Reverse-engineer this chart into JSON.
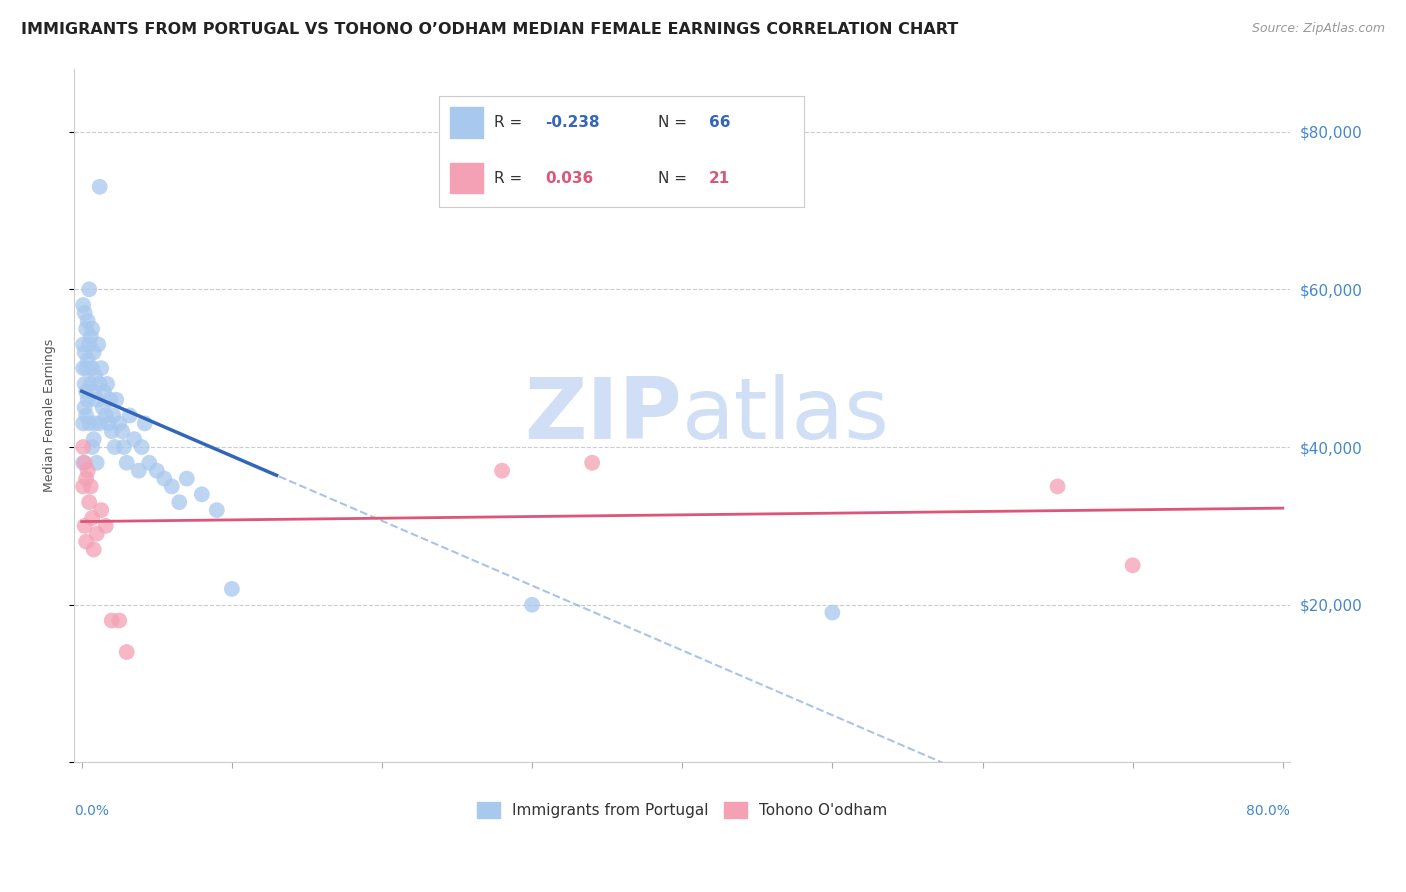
{
  "title": "IMMIGRANTS FROM PORTUGAL VS TOHONO O’ODHAM MEDIAN FEMALE EARNINGS CORRELATION CHART",
  "source": "Source: ZipAtlas.com",
  "ylabel": "Median Female Earnings",
  "y_ticks": [
    0,
    20000,
    40000,
    60000,
    80000
  ],
  "y_tick_labels": [
    "",
    "$20,000",
    "$40,000",
    "$60,000",
    "$80,000"
  ],
  "xlim": [
    -0.005,
    0.805
  ],
  "ylim": [
    0,
    88000
  ],
  "blue_R": -0.238,
  "blue_N": 66,
  "pink_R": 0.036,
  "pink_N": 21,
  "blue_color": "#A8C8EE",
  "blue_line_color": "#3366BB",
  "blue_dash_color": "#88AADA",
  "pink_color": "#F4A0B5",
  "pink_line_color": "#DD5577",
  "watermark_zip": "ZIP",
  "watermark_atlas": "atlas",
  "watermark_color": "#D0DFF5",
  "background_color": "#FFFFFF",
  "grid_color": "#CCCCCC",
  "title_fontsize": 11.5,
  "blue_x": [
    0.001,
    0.001,
    0.001,
    0.001,
    0.001,
    0.002,
    0.002,
    0.002,
    0.002,
    0.003,
    0.003,
    0.003,
    0.003,
    0.004,
    0.004,
    0.004,
    0.005,
    0.005,
    0.005,
    0.006,
    0.006,
    0.007,
    0.007,
    0.007,
    0.008,
    0.008,
    0.008,
    0.009,
    0.009,
    0.01,
    0.01,
    0.011,
    0.012,
    0.012,
    0.013,
    0.014,
    0.015,
    0.016,
    0.017,
    0.018,
    0.019,
    0.02,
    0.021,
    0.022,
    0.023,
    0.025,
    0.027,
    0.028,
    0.03,
    0.032,
    0.035,
    0.038,
    0.04,
    0.042,
    0.045,
    0.05,
    0.055,
    0.06,
    0.065,
    0.07,
    0.08,
    0.09,
    0.1,
    0.3,
    0.5,
    0.012
  ],
  "blue_y": [
    43000,
    58000,
    53000,
    38000,
    50000,
    57000,
    52000,
    48000,
    45000,
    55000,
    50000,
    47000,
    44000,
    56000,
    51000,
    46000,
    60000,
    53000,
    43000,
    54000,
    48000,
    55000,
    50000,
    40000,
    52000,
    47000,
    41000,
    49000,
    43000,
    46000,
    38000,
    53000,
    48000,
    43000,
    50000,
    45000,
    47000,
    44000,
    48000,
    43000,
    46000,
    42000,
    44000,
    40000,
    46000,
    43000,
    42000,
    40000,
    38000,
    44000,
    41000,
    37000,
    40000,
    43000,
    38000,
    37000,
    36000,
    35000,
    33000,
    36000,
    34000,
    32000,
    22000,
    20000,
    19000,
    73000
  ],
  "pink_x": [
    0.001,
    0.001,
    0.002,
    0.002,
    0.003,
    0.003,
    0.004,
    0.005,
    0.006,
    0.007,
    0.008,
    0.01,
    0.013,
    0.016,
    0.02,
    0.025,
    0.03,
    0.28,
    0.34,
    0.65,
    0.7
  ],
  "pink_y": [
    40000,
    35000,
    38000,
    30000,
    36000,
    28000,
    37000,
    33000,
    35000,
    31000,
    27000,
    29000,
    32000,
    30000,
    18000,
    18000,
    14000,
    37000,
    38000,
    35000,
    25000
  ]
}
